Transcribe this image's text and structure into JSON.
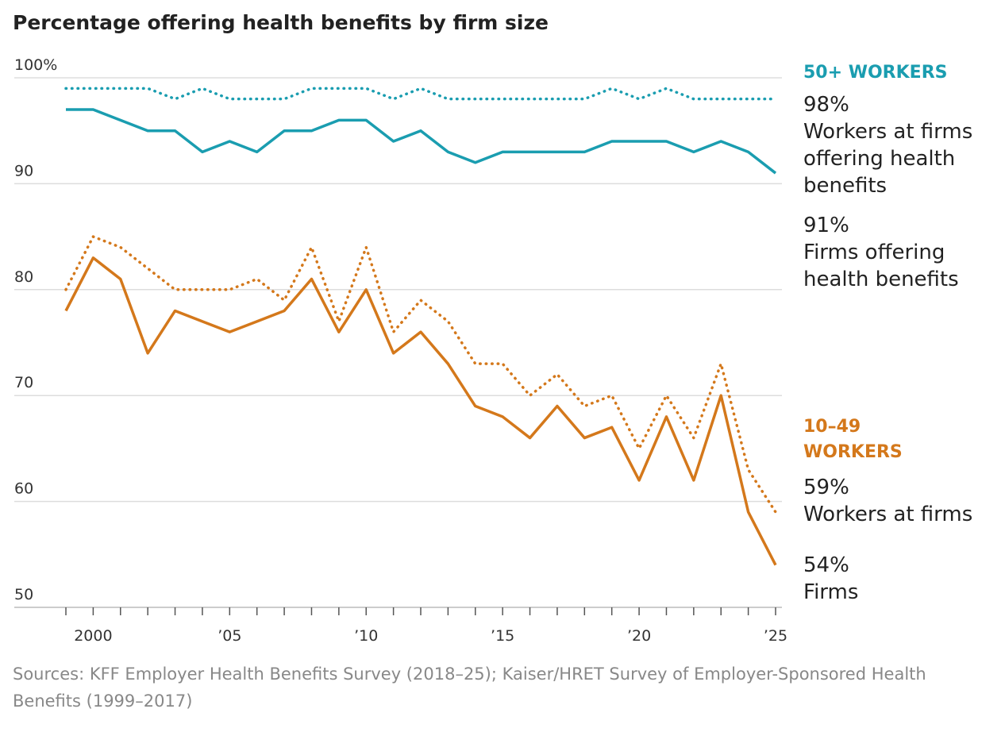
{
  "chart_data": {
    "type": "line",
    "title": "Percentage offering health benefits by firm size",
    "source": "Sources: KFF Employer Health Benefits Survey (2018–25); Kaiser/HRET Survey of Employer-Sponsored Health Benefits (1999–2017)",
    "annotations": [
      {
        "text": "50+ WORKERS",
        "color": "#1a9db0"
      },
      {
        "text": "10–49 WORKERS",
        "color": "#d4781b"
      }
    ],
    "x": [
      1999,
      2000,
      2001,
      2002,
      2003,
      2004,
      2005,
      2006,
      2007,
      2008,
      2009,
      2010,
      2011,
      2012,
      2013,
      2014,
      2015,
      2016,
      2017,
      2018,
      2019,
      2020,
      2021,
      2022,
      2023,
      2024,
      2025
    ],
    "xlim": [
      1999,
      2025
    ],
    "xticks": [
      2000,
      {
        "value": 2005,
        "label": "’05"
      },
      {
        "value": 2010,
        "label": "’10"
      },
      {
        "value": 2015,
        "label": "’15"
      },
      {
        "value": 2020,
        "label": "’20"
      },
      {
        "value": 2025,
        "label": "’25"
      }
    ],
    "minor_xticks": [
      1999,
      2000,
      2001,
      2002,
      2003,
      2004,
      2005,
      2006,
      2007,
      2008,
      2009,
      2010,
      2011,
      2012,
      2013,
      2014,
      2015,
      2016,
      2017,
      2018,
      2019,
      2020,
      2021,
      2022,
      2023,
      2024,
      2025
    ],
    "ylim": [
      50,
      100
    ],
    "yticks": [
      50,
      60,
      70,
      80,
      90,
      {
        "value": 100,
        "label": "100%"
      }
    ],
    "grid": true,
    "series": [
      {
        "name": "Workers at firms offering health benefits",
        "color": "#1a9db0",
        "style": "dotted",
        "values": [
          99,
          99,
          99,
          99,
          98,
          99,
          98,
          98,
          98,
          99,
          99,
          99,
          98,
          99,
          98,
          98,
          98,
          98,
          98,
          98,
          99,
          98,
          99,
          98,
          98,
          98,
          98
        ],
        "value_labels": [
          null,
          null,
          null,
          null,
          null,
          null,
          null,
          null,
          null,
          null,
          null,
          null,
          null,
          null,
          null,
          null,
          null,
          null,
          null,
          null,
          null,
          null,
          null,
          null,
          null,
          null,
          "98%"
        ]
      },
      {
        "name": "Firms offering health benefits",
        "color": "#1a9db0",
        "style": "solid",
        "values": [
          97,
          97,
          96,
          95,
          95,
          93,
          94,
          93,
          95,
          95,
          96,
          96,
          94,
          95,
          93,
          92,
          93,
          93,
          93,
          93,
          94,
          94,
          94,
          93,
          94,
          93,
          91
        ],
        "value_labels": [
          null,
          null,
          null,
          null,
          null,
          null,
          null,
          null,
          null,
          null,
          null,
          null,
          null,
          null,
          null,
          null,
          null,
          null,
          null,
          null,
          null,
          null,
          null,
          null,
          null,
          null,
          "91%"
        ]
      },
      {
        "name": "Workers at firms",
        "color": "#d4781b",
        "style": "dotted",
        "values": [
          80,
          85,
          84,
          82,
          80,
          80,
          80,
          81,
          79,
          84,
          77,
          84,
          76,
          79,
          77,
          73,
          73,
          70,
          72,
          69,
          70,
          65,
          70,
          66,
          73,
          63,
          59
        ],
        "value_labels": [
          null,
          null,
          null,
          null,
          null,
          null,
          null,
          null,
          null,
          null,
          null,
          null,
          null,
          null,
          null,
          null,
          null,
          null,
          null,
          null,
          null,
          null,
          null,
          null,
          null,
          null,
          "59%"
        ]
      },
      {
        "name": "Firms",
        "color": "#d4781b",
        "style": "solid",
        "values": [
          78,
          83,
          81,
          74,
          78,
          77,
          76,
          77,
          78,
          81,
          76,
          80,
          74,
          76,
          73,
          69,
          68,
          66,
          69,
          66,
          67,
          62,
          68,
          62,
          70,
          59,
          54
        ],
        "value_labels": [
          null,
          null,
          null,
          null,
          null,
          null,
          null,
          null,
          null,
          null,
          null,
          null,
          null,
          null,
          null,
          null,
          null,
          null,
          null,
          null,
          null,
          null,
          null,
          null,
          null,
          null,
          "54%"
        ]
      }
    ]
  }
}
